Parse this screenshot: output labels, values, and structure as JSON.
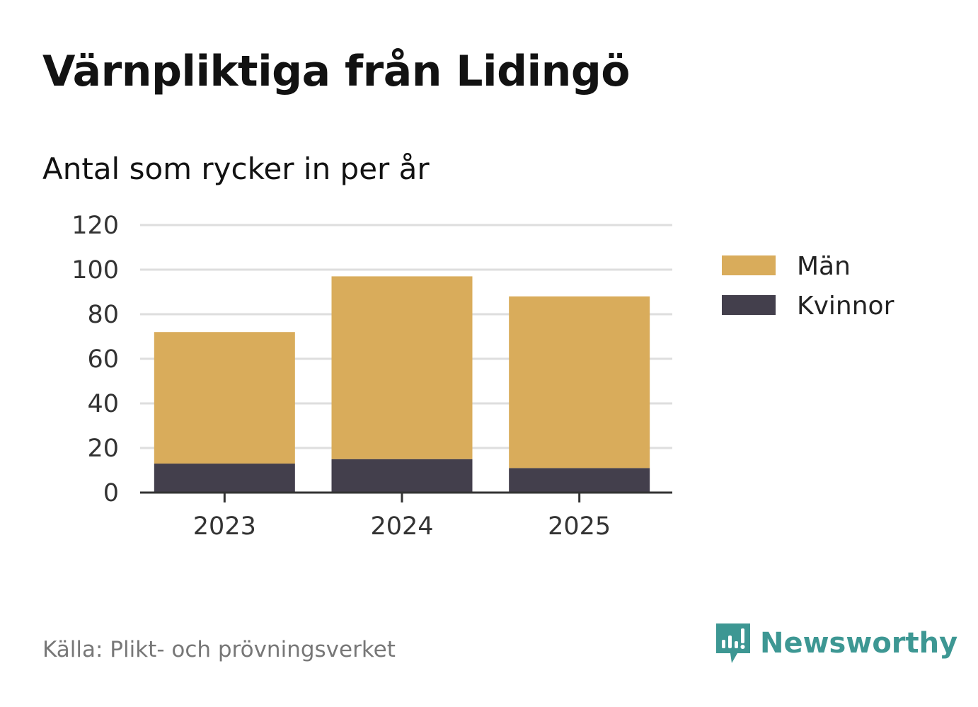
{
  "title": "Värnpliktiga från Lidingö",
  "subtitle": "Antal som rycker in per år",
  "source": "Källa: Plikt- och prövningsverket",
  "brand": "Newsworthy",
  "colors": {
    "man": "#d9ac5b",
    "kvinnor": "#433f4c",
    "grid": "#dedede",
    "axis": "#333333",
    "brand": "#3d9793"
  },
  "chart_data": {
    "type": "bar",
    "stacked": true,
    "categories": [
      "2023",
      "2024",
      "2025"
    ],
    "series": [
      {
        "name": "Kvinnor",
        "values": [
          13,
          15,
          11
        ],
        "color": "#433f4c"
      },
      {
        "name": "Män",
        "values": [
          59,
          82,
          77
        ],
        "color": "#d9ac5b"
      }
    ],
    "y_ticks": [
      "0",
      "20",
      "40",
      "60",
      "80",
      "100",
      "120"
    ],
    "ylim": [
      0,
      120
    ],
    "legend": [
      "Män",
      "Kvinnor"
    ],
    "legend_position": "right"
  }
}
